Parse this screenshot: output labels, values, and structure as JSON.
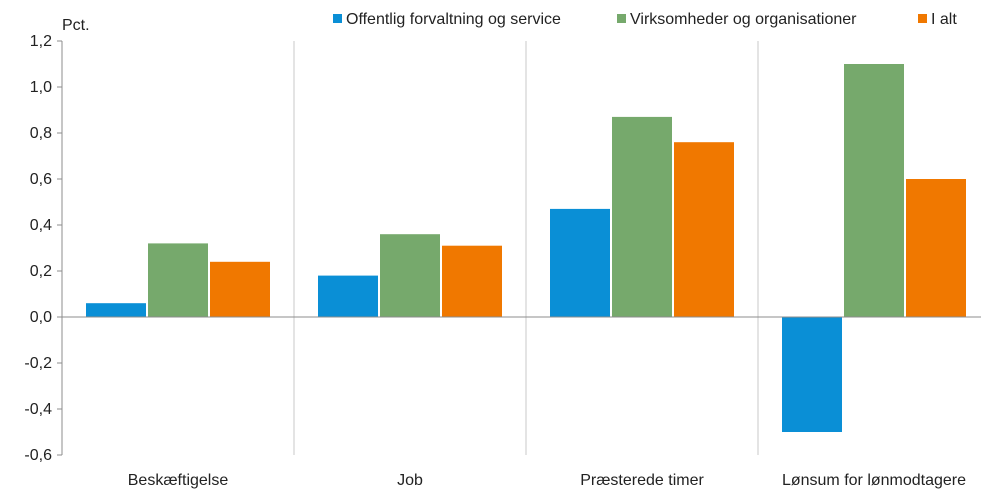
{
  "chart_data": {
    "type": "bar",
    "unit_label": "Pct.",
    "categories": [
      "Beskæftigelse",
      "Job",
      "Præsterede timer",
      "Lønsum for lønmodtagere"
    ],
    "series": [
      {
        "name": "Offentlig forvaltning og service",
        "color": "#0a8fd6",
        "values": [
          0.06,
          0.18,
          0.47,
          -0.5
        ]
      },
      {
        "name": "Virksomheder og organisationer",
        "color": "#76a96c",
        "values": [
          0.32,
          0.36,
          0.87,
          1.1
        ]
      },
      {
        "name": "I alt",
        "color": "#f07800",
        "values": [
          0.24,
          0.31,
          0.76,
          0.6
        ]
      }
    ],
    "ylim": [
      -0.6,
      1.2
    ],
    "yticks": [
      "1,2",
      "1,0",
      "0,8",
      "0,6",
      "0,4",
      "0,2",
      "0,0",
      "-0,2",
      "-0,4",
      "-0,6"
    ],
    "ytick_values": [
      1.2,
      1.0,
      0.8,
      0.6,
      0.4,
      0.2,
      0.0,
      -0.2,
      -0.4,
      -0.6
    ],
    "legend_position": "top",
    "category_separators": true
  }
}
